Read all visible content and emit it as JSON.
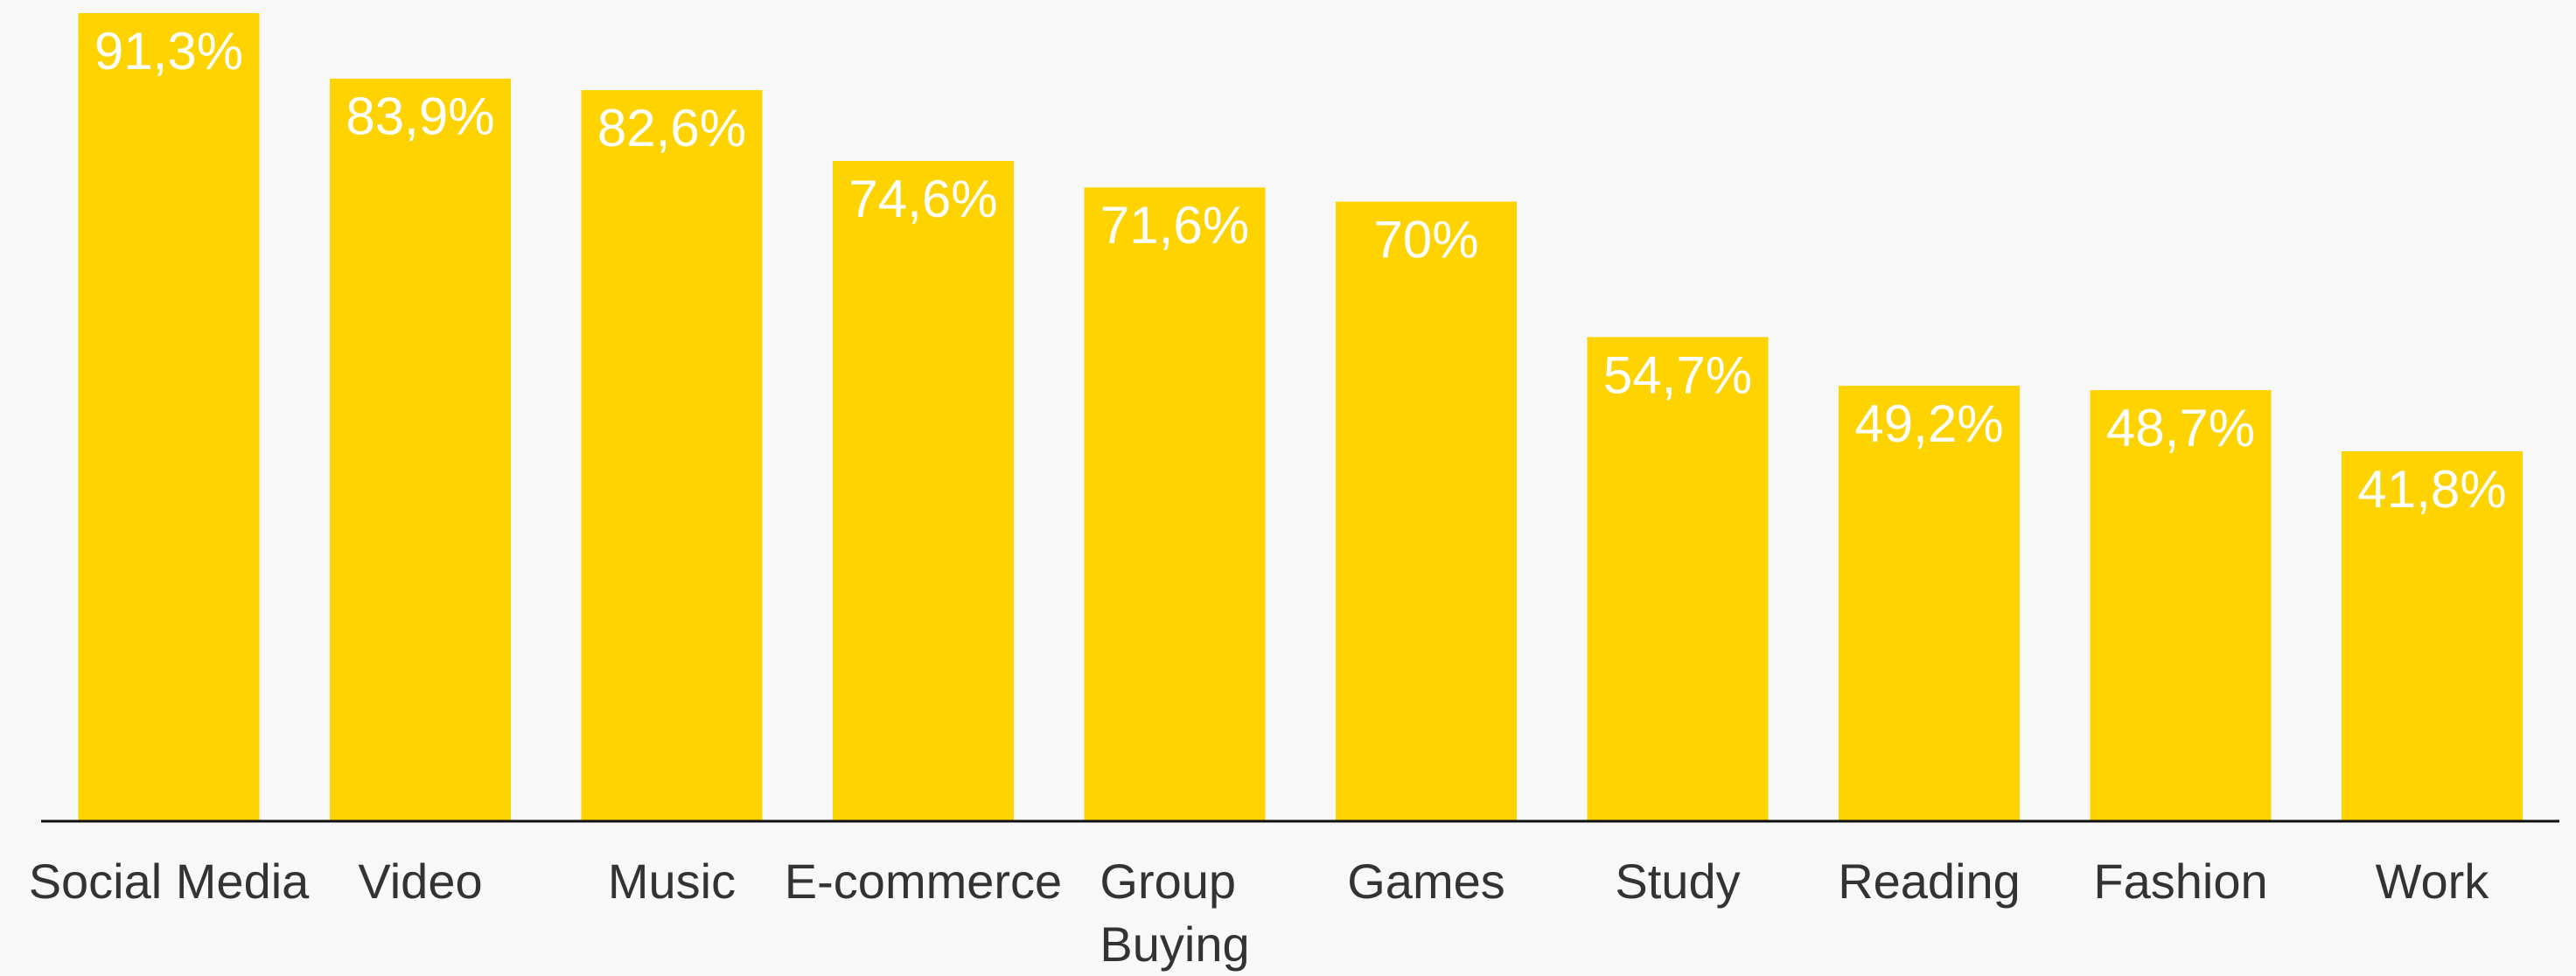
{
  "chart_data": {
    "type": "bar",
    "categories": [
      "Social Media",
      "Video",
      "Music",
      "E-commerce",
      "Group Buying",
      "Games",
      "Study",
      "Reading",
      "Fashion",
      "Work"
    ],
    "values": [
      91.3,
      83.9,
      82.6,
      74.6,
      71.6,
      70,
      54.7,
      49.2,
      48.7,
      41.8
    ],
    "value_labels": [
      "91,3%",
      "83,9%",
      "82,6%",
      "74,6%",
      "71,6%",
      "70%",
      "54,7%",
      "49,2%",
      "48,7%",
      "41,8%"
    ],
    "color": "#ffd300"
  }
}
